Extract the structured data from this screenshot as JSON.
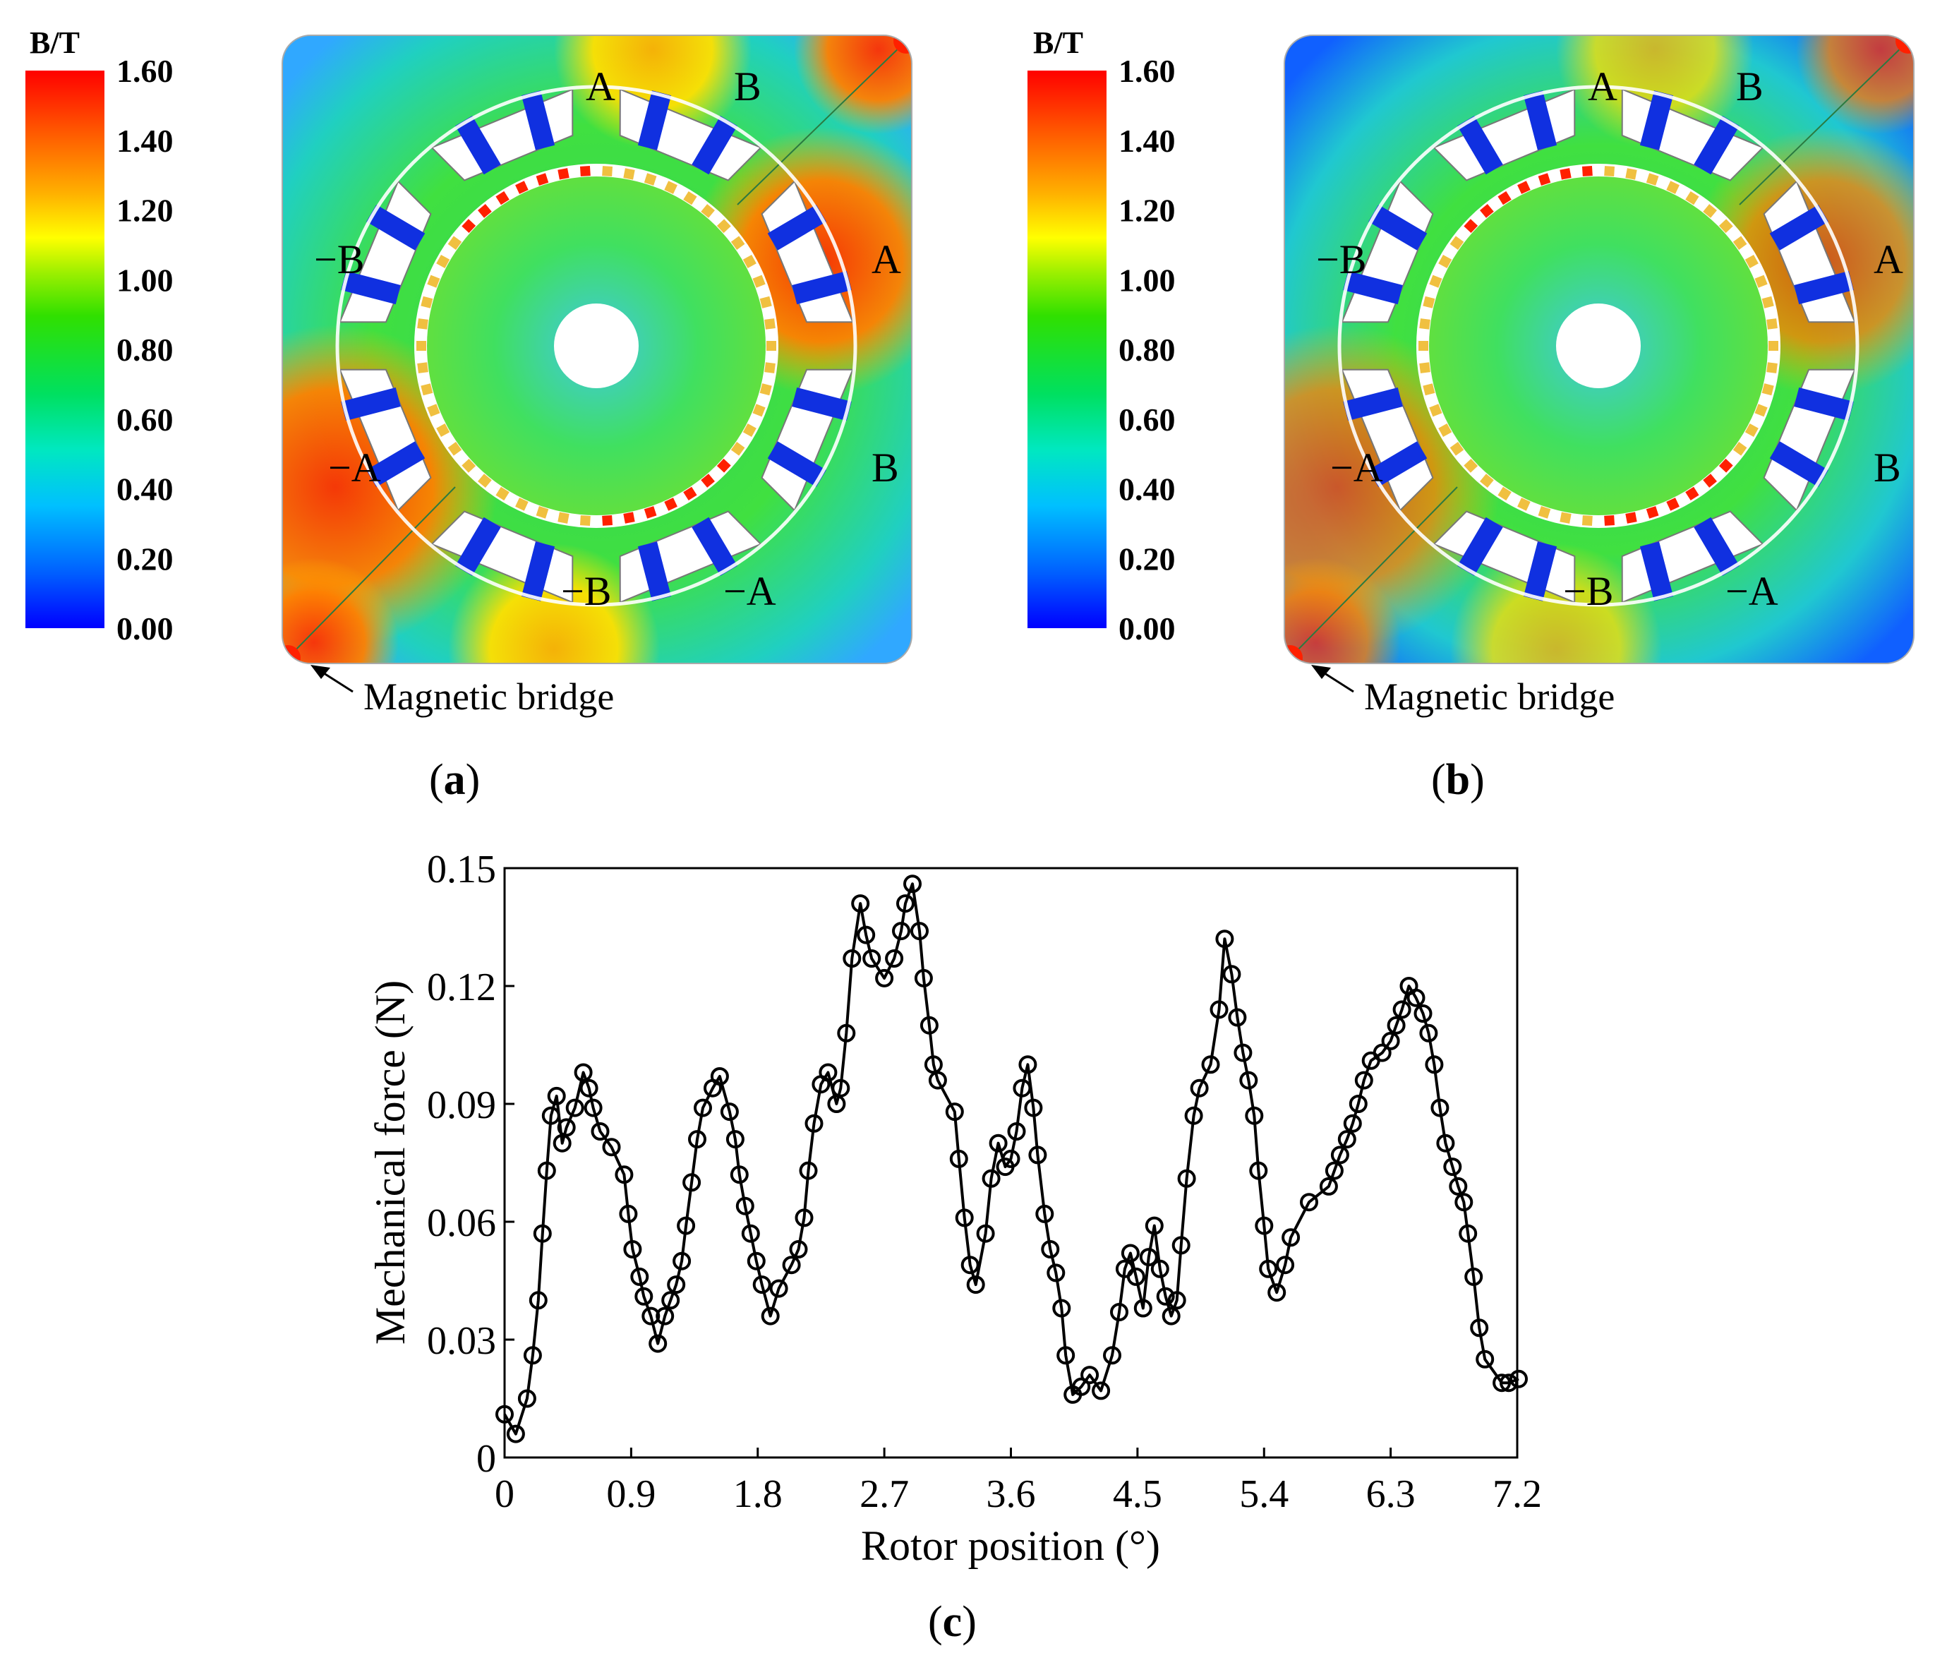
{
  "colorbar": {
    "unit": "B/T",
    "ticks": [
      "1.60",
      "1.40",
      "1.20",
      "1.00",
      "0.80",
      "0.60",
      "0.40",
      "0.20",
      "0.00"
    ],
    "colors": [
      "#0000ff",
      "#0060ff",
      "#00c0ff",
      "#00e8c0",
      "#00e060",
      "#30e000",
      "#a0f000",
      "#ffff00",
      "#ffb000",
      "#ff6000",
      "#ff0000"
    ]
  },
  "panels": [
    {
      "id": "a",
      "caption_letter": "a",
      "callout": "Magnetic bridge",
      "phase_labels": [
        "A",
        "B",
        "A",
        "B",
        "-A",
        "-B",
        "-A",
        "-B"
      ]
    },
    {
      "id": "b",
      "caption_letter": "b",
      "callout": "Magnetic bridge",
      "phase_labels": [
        "A",
        "B",
        "A",
        "B",
        "-A",
        "-B",
        "-A",
        "-B"
      ]
    }
  ],
  "chart_caption_letter": "c",
  "chart_data": {
    "type": "line",
    "marker": "circle",
    "xlabel": "Rotor position (°)",
    "ylabel": "Mechanical force (N)",
    "xlim": [
      0,
      7.2
    ],
    "ylim": [
      0,
      0.15
    ],
    "xticks": [
      "0",
      "0.9",
      "1.8",
      "2.7",
      "3.6",
      "4.5",
      "5.4",
      "6.3",
      "7.2"
    ],
    "yticks": [
      "0",
      "0.03",
      "0.06",
      "0.09",
      "0.12",
      "0.15"
    ],
    "series": [
      {
        "name": "Mechanical force",
        "points": [
          [
            0.0,
            0.011
          ],
          [
            0.08,
            0.006
          ],
          [
            0.16,
            0.015
          ],
          [
            0.2,
            0.026
          ],
          [
            0.24,
            0.04
          ],
          [
            0.27,
            0.057
          ],
          [
            0.3,
            0.073
          ],
          [
            0.33,
            0.087
          ],
          [
            0.37,
            0.092
          ],
          [
            0.41,
            0.08
          ],
          [
            0.44,
            0.084
          ],
          [
            0.5,
            0.089
          ],
          [
            0.56,
            0.098
          ],
          [
            0.6,
            0.094
          ],
          [
            0.63,
            0.089
          ],
          [
            0.68,
            0.083
          ],
          [
            0.76,
            0.079
          ],
          [
            0.85,
            0.072
          ],
          [
            0.88,
            0.062
          ],
          [
            0.91,
            0.053
          ],
          [
            0.96,
            0.046
          ],
          [
            0.99,
            0.041
          ],
          [
            1.04,
            0.036
          ],
          [
            1.09,
            0.029
          ],
          [
            1.14,
            0.036
          ],
          [
            1.18,
            0.04
          ],
          [
            1.22,
            0.044
          ],
          [
            1.26,
            0.05
          ],
          [
            1.29,
            0.059
          ],
          [
            1.33,
            0.07
          ],
          [
            1.37,
            0.081
          ],
          [
            1.41,
            0.089
          ],
          [
            1.48,
            0.094
          ],
          [
            1.53,
            0.097
          ],
          [
            1.6,
            0.088
          ],
          [
            1.64,
            0.081
          ],
          [
            1.67,
            0.072
          ],
          [
            1.71,
            0.064
          ],
          [
            1.75,
            0.057
          ],
          [
            1.79,
            0.05
          ],
          [
            1.83,
            0.044
          ],
          [
            1.89,
            0.036
          ],
          [
            1.95,
            0.043
          ],
          [
            2.04,
            0.049
          ],
          [
            2.09,
            0.053
          ],
          [
            2.13,
            0.061
          ],
          [
            2.16,
            0.073
          ],
          [
            2.2,
            0.085
          ],
          [
            2.25,
            0.095
          ],
          [
            2.3,
            0.098
          ],
          [
            2.36,
            0.09
          ],
          [
            2.39,
            0.094
          ],
          [
            2.43,
            0.108
          ],
          [
            2.47,
            0.127
          ],
          [
            2.53,
            0.141
          ],
          [
            2.57,
            0.133
          ],
          [
            2.61,
            0.127
          ],
          [
            2.7,
            0.122
          ],
          [
            2.77,
            0.127
          ],
          [
            2.82,
            0.134
          ],
          [
            2.85,
            0.141
          ],
          [
            2.9,
            0.146
          ],
          [
            2.95,
            0.134
          ],
          [
            2.98,
            0.122
          ],
          [
            3.02,
            0.11
          ],
          [
            3.05,
            0.1
          ],
          [
            3.08,
            0.096
          ],
          [
            3.2,
            0.088
          ],
          [
            3.23,
            0.076
          ],
          [
            3.27,
            0.061
          ],
          [
            3.31,
            0.049
          ],
          [
            3.35,
            0.044
          ],
          [
            3.42,
            0.057
          ],
          [
            3.46,
            0.071
          ],
          [
            3.51,
            0.08
          ],
          [
            3.56,
            0.074
          ],
          [
            3.6,
            0.076
          ],
          [
            3.64,
            0.083
          ],
          [
            3.68,
            0.094
          ],
          [
            3.72,
            0.1
          ],
          [
            3.76,
            0.089
          ],
          [
            3.79,
            0.077
          ],
          [
            3.84,
            0.062
          ],
          [
            3.88,
            0.053
          ],
          [
            3.92,
            0.047
          ],
          [
            3.96,
            0.038
          ],
          [
            3.99,
            0.026
          ],
          [
            4.04,
            0.016
          ],
          [
            4.1,
            0.018
          ],
          [
            4.16,
            0.021
          ],
          [
            4.24,
            0.017
          ],
          [
            4.32,
            0.026
          ],
          [
            4.37,
            0.037
          ],
          [
            4.41,
            0.048
          ],
          [
            4.45,
            0.052
          ],
          [
            4.49,
            0.046
          ],
          [
            4.54,
            0.038
          ],
          [
            4.58,
            0.051
          ],
          [
            4.62,
            0.059
          ],
          [
            4.66,
            0.048
          ],
          [
            4.7,
            0.041
          ],
          [
            4.74,
            0.036
          ],
          [
            4.78,
            0.04
          ],
          [
            4.81,
            0.054
          ],
          [
            4.85,
            0.071
          ],
          [
            4.9,
            0.087
          ],
          [
            4.94,
            0.094
          ],
          [
            5.02,
            0.1
          ],
          [
            5.08,
            0.114
          ],
          [
            5.12,
            0.132
          ],
          [
            5.17,
            0.123
          ],
          [
            5.21,
            0.112
          ],
          [
            5.25,
            0.103
          ],
          [
            5.29,
            0.096
          ],
          [
            5.33,
            0.087
          ],
          [
            5.36,
            0.073
          ],
          [
            5.4,
            0.059
          ],
          [
            5.43,
            0.048
          ],
          [
            5.49,
            0.042
          ],
          [
            5.55,
            0.049
          ],
          [
            5.59,
            0.056
          ],
          [
            5.72,
            0.065
          ],
          [
            5.86,
            0.069
          ],
          [
            5.9,
            0.073
          ],
          [
            5.94,
            0.077
          ],
          [
            5.99,
            0.081
          ],
          [
            6.03,
            0.085
          ],
          [
            6.07,
            0.09
          ],
          [
            6.11,
            0.096
          ],
          [
            6.16,
            0.101
          ],
          [
            6.24,
            0.103
          ],
          [
            6.3,
            0.106
          ],
          [
            6.34,
            0.11
          ],
          [
            6.38,
            0.114
          ],
          [
            6.43,
            0.12
          ],
          [
            6.48,
            0.117
          ],
          [
            6.53,
            0.113
          ],
          [
            6.57,
            0.108
          ],
          [
            6.61,
            0.1
          ],
          [
            6.65,
            0.089
          ],
          [
            6.69,
            0.08
          ],
          [
            6.74,
            0.074
          ],
          [
            6.78,
            0.069
          ],
          [
            6.82,
            0.065
          ],
          [
            6.85,
            0.057
          ],
          [
            6.89,
            0.046
          ],
          [
            6.93,
            0.033
          ],
          [
            6.97,
            0.025
          ],
          [
            7.09,
            0.019
          ],
          [
            7.14,
            0.019
          ],
          [
            7.21,
            0.02
          ]
        ]
      }
    ]
  }
}
